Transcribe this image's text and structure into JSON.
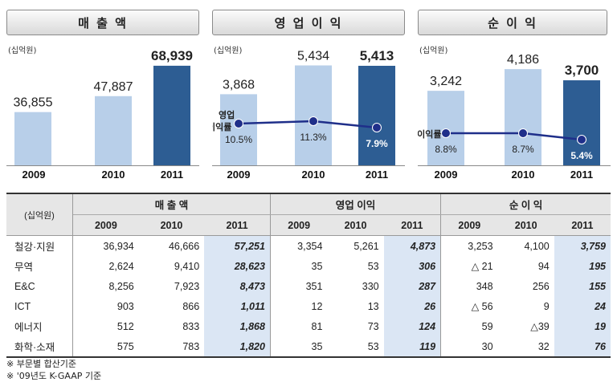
{
  "unit_label": "(십억원)",
  "chart_data": [
    {
      "type": "bar",
      "title": "매 출 액",
      "categories": [
        "2009",
        "2010",
        "2011"
      ],
      "values": [
        36855,
        47887,
        68939
      ],
      "value_labels": [
        "36,855",
        "47,887",
        "68,939"
      ],
      "ylim": [
        0,
        70000
      ],
      "colors": [
        "#b8cfe9",
        "#b8cfe9",
        "#2d5d93"
      ]
    },
    {
      "type": "bar",
      "title": "영 업 이 익",
      "categories": [
        "2009",
        "2010",
        "2011"
      ],
      "values": [
        3868,
        5434,
        5413
      ],
      "value_labels": [
        "3,868",
        "5,434",
        "5,413"
      ],
      "ylim": [
        0,
        5500
      ],
      "colors": [
        "#b8cfe9",
        "#b8cfe9",
        "#2d5d93"
      ],
      "line_series": {
        "name": "영업 이익률",
        "values": [
          10.5,
          11.3,
          7.9
        ],
        "labels": [
          "10.5%",
          "11.3%",
          "7.9%"
        ],
        "color": "#1f2f8a"
      }
    },
    {
      "type": "bar",
      "title": "순 이 익",
      "categories": [
        "2009",
        "2010",
        "2011"
      ],
      "values": [
        3242,
        4186,
        3700
      ],
      "value_labels": [
        "3,242",
        "4,186",
        "3,700"
      ],
      "ylim": [
        0,
        4400
      ],
      "colors": [
        "#b8cfe9",
        "#b8cfe9",
        "#2d5d93"
      ],
      "line_series": {
        "name": "순이익률",
        "values": [
          8.8,
          8.7,
          5.4
        ],
        "labels": [
          "8.8%",
          "8.7%",
          "5.4%"
        ],
        "color": "#1f2f8a"
      }
    },
    {
      "type": "table",
      "corner_label": "(십억원)",
      "groups": [
        "매 출 액",
        "영업 이익",
        "순 이 익"
      ],
      "years": [
        "2009",
        "2010",
        "2011"
      ],
      "rows": [
        {
          "label": "철강·지원",
          "values": [
            "36,934",
            "46,666",
            "57,251",
            "3,354",
            "5,261",
            "4,873",
            "3,253",
            "4,100",
            "3,759"
          ]
        },
        {
          "label": "무역",
          "values": [
            "2,624",
            "9,410",
            "28,623",
            "35",
            "53",
            "306",
            "△ 21",
            "94",
            "195"
          ]
        },
        {
          "label": "E&C",
          "values": [
            "8,256",
            "7,923",
            "8,473",
            "351",
            "330",
            "287",
            "348",
            "256",
            "155"
          ]
        },
        {
          "label": "ICT",
          "values": [
            "903",
            "866",
            "1,011",
            "12",
            "13",
            "26",
            "△ 56",
            "9",
            "24"
          ]
        },
        {
          "label": "에너지",
          "values": [
            "512",
            "833",
            "1,868",
            "81",
            "73",
            "124",
            "59",
            "△39",
            "19"
          ]
        },
        {
          "label": "화학·소재",
          "values": [
            "575",
            "783",
            "1,820",
            "35",
            "53",
            "119",
            "30",
            "32",
            "76"
          ]
        }
      ]
    }
  ],
  "notes": [
    "※ 부문별 합산기준",
    "※ '09년도 K-GAAP 기준"
  ]
}
